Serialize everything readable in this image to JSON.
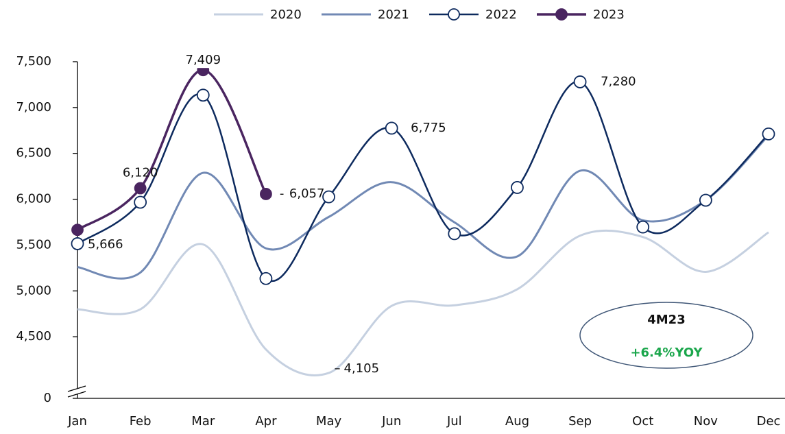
{
  "chart_data": {
    "type": "line",
    "categories": [
      "Jan",
      "Feb",
      "Mar",
      "Apr",
      "May",
      "Jun",
      "Jul",
      "Aug",
      "Sep",
      "Oct",
      "Nov",
      "Dec"
    ],
    "series": [
      {
        "name": "2020",
        "color": "#c5d0e0",
        "marker": "none",
        "values": [
          4799,
          4799,
          5507,
          4361,
          4105,
          4836,
          4843,
          5018,
          5602,
          5588,
          5208,
          5639
        ],
        "value_labels": [
          null,
          null,
          null,
          null,
          "4,105",
          null,
          null,
          null,
          null,
          null,
          null,
          null
        ]
      },
      {
        "name": "2021",
        "color": "#7189b4",
        "marker": "none",
        "values": [
          5259,
          5200,
          6288,
          5464,
          5807,
          6186,
          5748,
          5376,
          6310,
          5770,
          5989,
          6697
        ]
      },
      {
        "name": "2022",
        "color": "#0d2a5e",
        "marker": "open",
        "values": [
          5515,
          5967,
          7135,
          5135,
          6026,
          6775,
          5624,
          6128,
          7280,
          5697,
          5989,
          6712
        ],
        "value_labels": [
          null,
          null,
          null,
          null,
          null,
          "6,775",
          null,
          null,
          "7,280",
          null,
          null,
          null
        ]
      },
      {
        "name": "2023",
        "color": "#4a2560",
        "marker": "filled",
        "values": [
          5666,
          6120,
          7409,
          6057,
          null,
          null,
          null,
          null,
          null,
          null,
          null,
          null
        ],
        "value_labels": [
          "5,666",
          "6,120",
          "7,409",
          "6,057",
          null,
          null,
          null,
          null,
          null,
          null,
          null,
          null
        ]
      }
    ],
    "ylim": [
      4000,
      7500
    ],
    "yticks": [
      0,
      {
        "value": 4500,
        "label": "4,500"
      },
      {
        "value": 5000,
        "label": "5,000"
      },
      {
        "value": 5500,
        "label": "5,500"
      },
      {
        "value": 6000,
        "label": "6,000"
      },
      {
        "value": 6500,
        "label": "6,500"
      },
      {
        "value": 7000,
        "label": "7,000"
      },
      {
        "value": 7500,
        "label": "7,500"
      }
    ],
    "axis_break": true,
    "legend": "top",
    "annotation": {
      "title": "4M23",
      "text": "+6.4%YOY",
      "color": "#1aa64b"
    }
  }
}
